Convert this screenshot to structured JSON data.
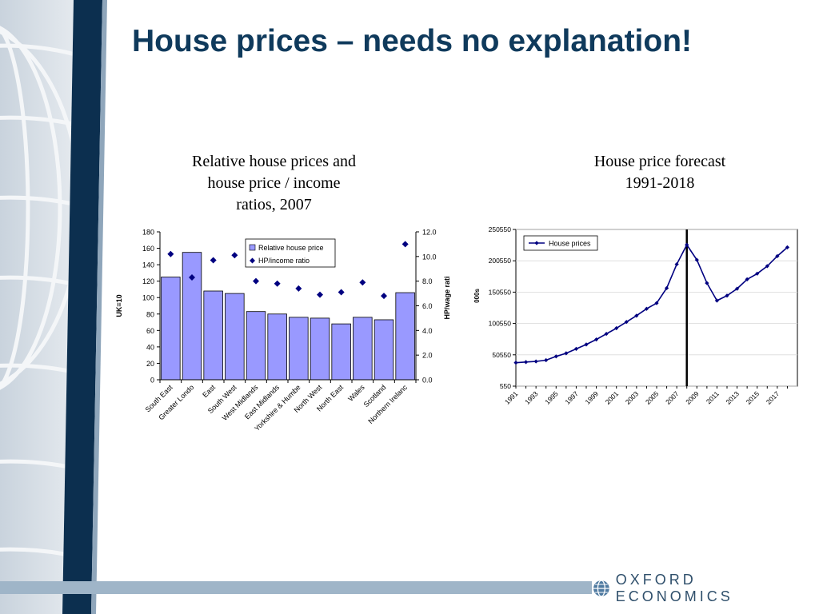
{
  "slide": {
    "title": "House prices – needs no explanation!"
  },
  "left_chart": {
    "heading_lines": [
      "Relative house prices and",
      "house price / income",
      "ratios, 2007"
    ]
  },
  "right_chart": {
    "heading_lines": [
      "House price forecast",
      "1991-2018"
    ]
  },
  "footer": {
    "logo_text": "OXFORD ECONOMICS"
  },
  "colors": {
    "title": "#0f3a5c",
    "bar_fill": "#9999ff",
    "marker": "#000080",
    "line": "#000080",
    "footer_bar": "#9fb5c8"
  },
  "chart_data": [
    {
      "type": "bar",
      "categories": [
        "South East",
        "Greater London",
        "East",
        "South West",
        "West Midlands",
        "East Midlands",
        "Yorkshire & Humber",
        "North West",
        "North East",
        "Wales",
        "Scotland",
        "Northern Ireland"
      ],
      "category_labels_shown": [
        "South East",
        "Greater Londo",
        "East",
        "South West",
        "West Midlands",
        "East Midlands",
        "Yorkshire & Humbe",
        "North West",
        "North East",
        "Wales",
        "Scotland",
        "Northern Irelanc"
      ],
      "series": [
        {
          "name": "Relative house price",
          "type": "bar",
          "axis": "left",
          "values": [
            125,
            155,
            108,
            105,
            83,
            80,
            76,
            75,
            68,
            76,
            73,
            106
          ]
        },
        {
          "name": "HP/income ratio",
          "type": "scatter",
          "axis": "right",
          "values": [
            10.2,
            8.3,
            9.7,
            10.1,
            8.0,
            7.8,
            7.4,
            6.9,
            7.1,
            7.9,
            6.8,
            11.0
          ]
        }
      ],
      "ylabel": "UK=10",
      "y2label": "HP/wage rati",
      "ylim": [
        0,
        180
      ],
      "y_ticks": [
        0,
        20,
        40,
        60,
        80,
        100,
        120,
        140,
        160,
        180
      ],
      "y2lim": [
        0,
        12
      ],
      "y2_ticks": [
        "0.0",
        "2.0",
        "4.0",
        "6.0",
        "8.0",
        "10.0",
        "12.0"
      ],
      "legend": "top-center",
      "grid": false
    },
    {
      "type": "line",
      "x": [
        1991,
        1992,
        1993,
        1994,
        1995,
        1996,
        1997,
        1998,
        1999,
        2000,
        2001,
        2002,
        2003,
        2004,
        2005,
        2006,
        2007,
        2008,
        2009,
        2010,
        2011,
        2012,
        2013,
        2014,
        2015,
        2016,
        2017,
        2018
      ],
      "series": [
        {
          "name": "House prices",
          "values": [
            38000,
            39000,
            40000,
            42000,
            48000,
            53000,
            60000,
            67000,
            75000,
            84000,
            93000,
            103000,
            113000,
            124000,
            133000,
            157000,
            195000,
            226000,
            202000,
            165000,
            137000,
            145000,
            156000,
            171000,
            180000,
            192000,
            208000,
            222000
          ]
        }
      ],
      "x_ticks": [
        "1991",
        "1993",
        "1995",
        "1997",
        "1999",
        "2001",
        "2003",
        "2005",
        "2007",
        "2009",
        "2011",
        "2013",
        "2015",
        "2017"
      ],
      "ylabel": "000s",
      "ylim": [
        550,
        250550
      ],
      "y_ticks": [
        "550",
        "50550",
        "100550",
        "150550",
        "200550",
        "250550"
      ],
      "vertical_marker_x": 2008,
      "legend": "top-left",
      "grid": true
    }
  ]
}
